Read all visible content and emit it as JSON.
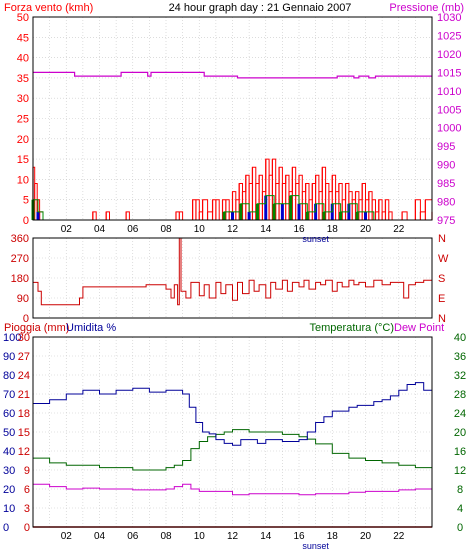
{
  "colors": {
    "wind": "#ff0000",
    "pressure": "#cc00cc",
    "direction": "#cc0000",
    "rain": "#cc0000",
    "humidity": "#000099",
    "temperature": "#006600",
    "dewpoint": "#cc00cc",
    "gust_blue": "#0000cc",
    "gust_green": "#008800",
    "axis": "#000000",
    "sunset": "#000099"
  },
  "chart_data": [
    {
      "type": "bar",
      "title": "24 hour graph day : 21 Gennaio 2007",
      "left_label": "Forza vento (kmh)",
      "right_label": "Pressione (mb)",
      "x_ticks": [
        "02",
        "04",
        "06",
        "08",
        "10",
        "12",
        "14",
        "16",
        "18",
        "20",
        "22"
      ],
      "x_range": [
        0,
        24
      ],
      "marker_label": "sunset",
      "marker_x": 17,
      "ylim_left": [
        0,
        50
      ],
      "y_ticks_left": [
        0,
        5,
        10,
        15,
        20,
        25,
        30,
        35,
        40,
        45,
        50
      ],
      "ylim_right": [
        975,
        1030
      ],
      "y_ticks_right": [
        975,
        980,
        985,
        990,
        995,
        1000,
        1005,
        1010,
        1015,
        1020,
        1025,
        1030
      ],
      "wind_speed": [
        [
          0.0,
          13
        ],
        [
          0.1,
          9
        ],
        [
          0.25,
          5
        ],
        [
          0.4,
          2
        ],
        [
          0.6,
          0
        ],
        [
          3.5,
          0
        ],
        [
          3.6,
          2
        ],
        [
          3.8,
          0
        ],
        [
          4.3,
          0
        ],
        [
          4.4,
          2
        ],
        [
          4.6,
          0
        ],
        [
          5.5,
          0
        ],
        [
          5.6,
          2
        ],
        [
          5.8,
          0
        ],
        [
          6.0,
          0
        ],
        [
          8.5,
          0
        ],
        [
          8.6,
          2
        ],
        [
          8.8,
          2
        ],
        [
          9.0,
          0
        ],
        [
          9.5,
          0
        ],
        [
          9.6,
          5
        ],
        [
          9.8,
          5
        ],
        [
          10.0,
          2
        ],
        [
          10.2,
          5
        ],
        [
          10.5,
          2
        ],
        [
          10.8,
          5
        ],
        [
          11.0,
          5
        ],
        [
          11.2,
          0
        ],
        [
          11.4,
          5
        ],
        [
          11.6,
          5
        ],
        [
          11.8,
          2
        ],
        [
          12.0,
          7
        ],
        [
          12.2,
          5
        ],
        [
          12.4,
          9
        ],
        [
          12.6,
          7
        ],
        [
          12.8,
          11
        ],
        [
          13.0,
          9
        ],
        [
          13.2,
          13
        ],
        [
          13.4,
          9
        ],
        [
          13.6,
          11
        ],
        [
          13.8,
          7
        ],
        [
          14.0,
          15
        ],
        [
          14.2,
          11
        ],
        [
          14.4,
          15
        ],
        [
          14.6,
          9
        ],
        [
          14.8,
          13
        ],
        [
          15.0,
          9
        ],
        [
          15.2,
          11
        ],
        [
          15.4,
          7
        ],
        [
          15.6,
          13
        ],
        [
          15.8,
          9
        ],
        [
          16.0,
          11
        ],
        [
          16.2,
          7
        ],
        [
          16.4,
          9
        ],
        [
          16.6,
          5
        ],
        [
          16.8,
          9
        ],
        [
          17.0,
          11
        ],
        [
          17.2,
          7
        ],
        [
          17.4,
          13
        ],
        [
          17.6,
          9
        ],
        [
          17.8,
          7
        ],
        [
          18.0,
          11
        ],
        [
          18.2,
          7
        ],
        [
          18.4,
          9
        ],
        [
          18.6,
          5
        ],
        [
          18.8,
          9
        ],
        [
          19.0,
          7
        ],
        [
          19.2,
          5
        ],
        [
          19.4,
          7
        ],
        [
          19.6,
          5
        ],
        [
          19.8,
          9
        ],
        [
          20.0,
          5
        ],
        [
          20.2,
          7
        ],
        [
          20.4,
          5
        ],
        [
          20.6,
          2
        ],
        [
          20.8,
          5
        ],
        [
          21.0,
          2
        ],
        [
          21.2,
          5
        ],
        [
          21.4,
          2
        ],
        [
          21.6,
          0
        ],
        [
          22.0,
          0
        ],
        [
          22.2,
          2
        ],
        [
          22.5,
          0
        ],
        [
          23.0,
          5
        ],
        [
          23.3,
          2
        ],
        [
          23.6,
          5
        ],
        [
          24.0,
          2
        ]
      ],
      "wind_avg": [
        [
          0.0,
          5
        ],
        [
          0.3,
          2
        ],
        [
          0.6,
          0
        ],
        [
          11.0,
          0
        ],
        [
          11.5,
          2
        ],
        [
          12.0,
          2
        ],
        [
          12.5,
          4
        ],
        [
          13.0,
          2
        ],
        [
          13.5,
          4
        ],
        [
          14.0,
          6
        ],
        [
          14.5,
          4
        ],
        [
          15.0,
          4
        ],
        [
          15.5,
          6
        ],
        [
          16.0,
          4
        ],
        [
          16.5,
          2
        ],
        [
          17.0,
          4
        ],
        [
          17.5,
          2
        ],
        [
          18.0,
          4
        ],
        [
          18.5,
          2
        ],
        [
          19.0,
          4
        ],
        [
          19.5,
          2
        ],
        [
          20.0,
          2
        ],
        [
          20.5,
          0
        ],
        [
          24.0,
          0
        ]
      ],
      "pressure": [
        [
          0.0,
          1015
        ],
        [
          2.0,
          1015
        ],
        [
          2.5,
          1014
        ],
        [
          5.0,
          1014
        ],
        [
          5.3,
          1015
        ],
        [
          6.7,
          1015
        ],
        [
          6.9,
          1014
        ],
        [
          7.1,
          1015
        ],
        [
          10.0,
          1015
        ],
        [
          10.3,
          1014
        ],
        [
          12.0,
          1014
        ],
        [
          12.3,
          1013.5
        ],
        [
          17.0,
          1013.5
        ],
        [
          17.5,
          1013.5
        ],
        [
          18.0,
          1013.5
        ],
        [
          18.3,
          1014
        ],
        [
          19.0,
          1014
        ],
        [
          19.3,
          1013.5
        ],
        [
          19.6,
          1014
        ],
        [
          20.0,
          1014
        ],
        [
          20.2,
          1013.5
        ],
        [
          20.6,
          1014
        ],
        [
          24.0,
          1014
        ]
      ]
    },
    {
      "type": "line",
      "title": "",
      "y_ticks_left": [
        0,
        90,
        180,
        270,
        360
      ],
      "ylim_left": [
        0,
        360
      ],
      "right_labels": [
        "N",
        "W",
        "S",
        "E",
        "N"
      ],
      "x_range": [
        0,
        24
      ],
      "wind_direction": [
        [
          0.0,
          160
        ],
        [
          0.3,
          120
        ],
        [
          0.5,
          60
        ],
        [
          2.5,
          60
        ],
        [
          2.8,
          90
        ],
        [
          3.0,
          140
        ],
        [
          6.5,
          140
        ],
        [
          6.8,
          150
        ],
        [
          7.5,
          150
        ],
        [
          8.0,
          130
        ],
        [
          8.3,
          90
        ],
        [
          8.5,
          150
        ],
        [
          8.7,
          60
        ],
        [
          8.8,
          360
        ],
        [
          8.9,
          120
        ],
        [
          9.2,
          90
        ],
        [
          9.5,
          160
        ],
        [
          10.0,
          100
        ],
        [
          10.3,
          150
        ],
        [
          10.6,
          90
        ],
        [
          11.0,
          160
        ],
        [
          11.3,
          110
        ],
        [
          11.6,
          150
        ],
        [
          12.0,
          80
        ],
        [
          12.3,
          160
        ],
        [
          12.6,
          110
        ],
        [
          13.0,
          170
        ],
        [
          13.3,
          120
        ],
        [
          13.6,
          150
        ],
        [
          14.0,
          90
        ],
        [
          14.3,
          160
        ],
        [
          14.6,
          130
        ],
        [
          15.0,
          170
        ],
        [
          15.3,
          120
        ],
        [
          15.6,
          160
        ],
        [
          16.0,
          140
        ],
        [
          16.3,
          170
        ],
        [
          16.6,
          130
        ],
        [
          17.0,
          160
        ],
        [
          17.3,
          150
        ],
        [
          17.6,
          170
        ],
        [
          18.0,
          120
        ],
        [
          18.3,
          160
        ],
        [
          18.6,
          140
        ],
        [
          19.0,
          170
        ],
        [
          19.3,
          150
        ],
        [
          19.6,
          160
        ],
        [
          20.0,
          140
        ],
        [
          20.5,
          170
        ],
        [
          21.0,
          150
        ],
        [
          21.5,
          160
        ],
        [
          22.0,
          160
        ],
        [
          22.3,
          90
        ],
        [
          22.6,
          150
        ],
        [
          23.0,
          160
        ],
        [
          23.5,
          170
        ],
        [
          24.0,
          160
        ]
      ]
    },
    {
      "type": "line",
      "title": "",
      "left_labels": [
        "Pioggia (mm)",
        "Umidita %"
      ],
      "right_labels": [
        "Temperatura (°C)",
        "Dew Point"
      ],
      "y_ticks_rain": [
        0,
        3,
        6,
        9,
        12,
        15,
        18,
        21,
        24,
        27,
        30
      ],
      "y_ticks_humidity": [
        0,
        10,
        20,
        30,
        40,
        50,
        60,
        70,
        80,
        90,
        100
      ],
      "y_ticks_temp": [
        0,
        4,
        8,
        12,
        16,
        20,
        24,
        28,
        32,
        36,
        40
      ],
      "ylim_humidity": [
        0,
        100
      ],
      "ylim_temp": [
        0,
        40
      ],
      "x_ticks": [
        "02",
        "04",
        "06",
        "08",
        "10",
        "12",
        "14",
        "16",
        "18",
        "20",
        "22"
      ],
      "x_range": [
        0,
        24
      ],
      "marker_label": "sunset",
      "marker_x": 17,
      "humidity": [
        [
          0,
          65
        ],
        [
          1,
          67
        ],
        [
          2,
          70
        ],
        [
          3,
          72
        ],
        [
          4,
          70
        ],
        [
          5,
          72
        ],
        [
          6,
          73
        ],
        [
          7,
          71
        ],
        [
          8,
          72
        ],
        [
          9,
          70
        ],
        [
          9.4,
          63
        ],
        [
          9.8,
          55
        ],
        [
          10.2,
          50
        ],
        [
          10.6,
          49
        ],
        [
          11.0,
          46
        ],
        [
          11.5,
          44
        ],
        [
          12.0,
          43
        ],
        [
          12.5,
          46
        ],
        [
          13.0,
          46
        ],
        [
          13.5,
          44
        ],
        [
          14.0,
          46
        ],
        [
          15.0,
          45
        ],
        [
          16.0,
          46
        ],
        [
          16.5,
          50
        ],
        [
          17.0,
          55
        ],
        [
          17.5,
          58
        ],
        [
          18.0,
          61
        ],
        [
          18.5,
          61
        ],
        [
          19.0,
          63
        ],
        [
          19.5,
          64
        ],
        [
          20.0,
          64
        ],
        [
          20.5,
          66
        ],
        [
          21.0,
          67
        ],
        [
          21.5,
          69
        ],
        [
          22.0,
          72
        ],
        [
          22.5,
          75
        ],
        [
          23.0,
          76
        ],
        [
          23.5,
          72
        ],
        [
          24.0,
          72
        ]
      ],
      "temperature": [
        [
          0,
          14.5
        ],
        [
          1,
          13.5
        ],
        [
          2,
          13
        ],
        [
          3,
          13
        ],
        [
          4,
          12.5
        ],
        [
          5,
          12.5
        ],
        [
          6,
          12
        ],
        [
          7,
          12
        ],
        [
          8,
          12.5
        ],
        [
          8.5,
          13
        ],
        [
          9,
          14
        ],
        [
          9.5,
          16.5
        ],
        [
          10,
          18
        ],
        [
          10.5,
          19
        ],
        [
          11,
          19.5
        ],
        [
          11.5,
          20
        ],
        [
          12,
          20.5
        ],
        [
          12.5,
          20.5
        ],
        [
          13,
          20
        ],
        [
          14,
          20
        ],
        [
          15,
          19.5
        ],
        [
          16,
          19
        ],
        [
          16.5,
          18.5
        ],
        [
          17,
          17.5
        ],
        [
          18,
          15.5
        ],
        [
          19,
          14.5
        ],
        [
          20,
          14
        ],
        [
          21,
          13.5
        ],
        [
          22,
          13
        ],
        [
          23,
          12.5
        ],
        [
          24,
          12.5
        ]
      ],
      "dewpoint": [
        [
          0,
          9
        ],
        [
          1,
          8.5
        ],
        [
          2,
          8
        ],
        [
          3,
          8.2
        ],
        [
          4,
          8
        ],
        [
          5,
          8
        ],
        [
          6,
          7.8
        ],
        [
          7,
          7.8
        ],
        [
          8,
          8
        ],
        [
          8.5,
          8.5
        ],
        [
          9,
          9
        ],
        [
          9.5,
          8
        ],
        [
          10,
          7.5
        ],
        [
          11,
          7.5
        ],
        [
          12,
          6.8
        ],
        [
          13,
          7
        ],
        [
          14,
          7
        ],
        [
          15,
          7
        ],
        [
          16,
          6.8
        ],
        [
          17,
          7
        ],
        [
          18,
          7
        ],
        [
          19,
          7.3
        ],
        [
          20,
          7.5
        ],
        [
          21,
          7.5
        ],
        [
          22,
          7.8
        ],
        [
          23,
          8
        ],
        [
          24,
          7.8
        ]
      ],
      "rain": [
        [
          0,
          0
        ],
        [
          24,
          0
        ]
      ]
    }
  ]
}
